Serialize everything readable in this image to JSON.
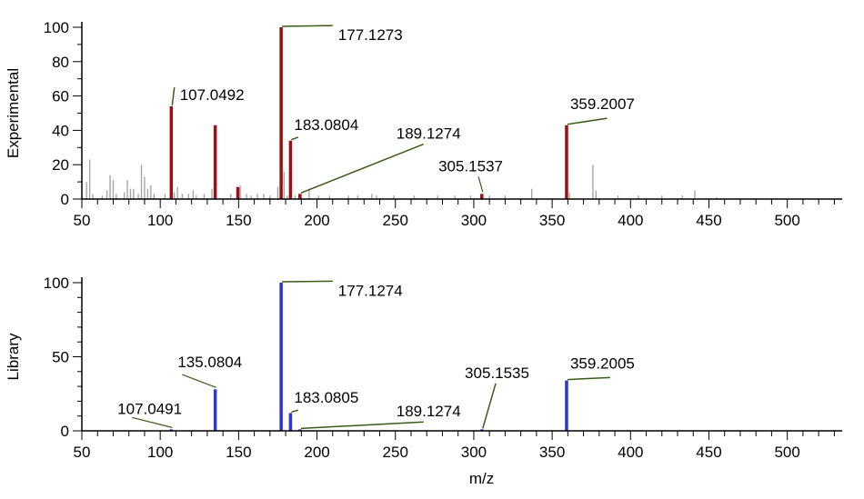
{
  "chart_data": [
    {
      "type": "bar",
      "name": "experimental",
      "ylabel": "Experimental",
      "xlabel": "",
      "xlim": [
        50,
        535
      ],
      "ylim": [
        0,
        100
      ],
      "xticks": [
        50,
        100,
        150,
        200,
        250,
        300,
        350,
        400,
        450,
        500
      ],
      "yticks": [
        0,
        20,
        40,
        60,
        80,
        100
      ],
      "colors": {
        "matched": "#9b1111",
        "unmatched": "#a6a6a6",
        "annotation_line": "#3a5a1a"
      },
      "matched_peaks": [
        {
          "mz": 107.0492,
          "intensity": 54,
          "label": "107.0492"
        },
        {
          "mz": 135.0804,
          "intensity": 43,
          "label": ""
        },
        {
          "mz": 149.5,
          "intensity": 7,
          "label": ""
        },
        {
          "mz": 177.1273,
          "intensity": 100,
          "label": "177.1273"
        },
        {
          "mz": 183.0804,
          "intensity": 34,
          "label": "183.0804"
        },
        {
          "mz": 189.1274,
          "intensity": 3,
          "label": "189.1274"
        },
        {
          "mz": 305.1537,
          "intensity": 3,
          "label": "305.1537"
        },
        {
          "mz": 359.2007,
          "intensity": 43,
          "label": "359.2007"
        }
      ],
      "unmatched_peaks": [
        [
          53,
          10
        ],
        [
          55,
          23
        ],
        [
          57,
          3
        ],
        [
          63,
          2
        ],
        [
          66,
          5
        ],
        [
          68,
          14
        ],
        [
          70,
          11
        ],
        [
          72,
          3
        ],
        [
          77,
          4
        ],
        [
          79,
          11
        ],
        [
          81,
          6
        ],
        [
          83,
          6
        ],
        [
          86,
          3
        ],
        [
          88,
          20
        ],
        [
          90,
          13
        ],
        [
          92,
          6
        ],
        [
          94,
          8
        ],
        [
          96,
          3
        ],
        [
          103,
          3
        ],
        [
          109,
          4
        ],
        [
          111,
          7
        ],
        [
          114,
          3
        ],
        [
          118,
          3
        ],
        [
          121,
          5
        ],
        [
          123,
          2
        ],
        [
          128,
          3
        ],
        [
          133,
          6
        ],
        [
          145,
          3
        ],
        [
          151,
          8
        ],
        [
          155,
          3
        ],
        [
          158,
          2
        ],
        [
          162,
          3
        ],
        [
          166,
          3
        ],
        [
          170,
          2
        ],
        [
          175,
          7
        ],
        [
          179,
          16
        ],
        [
          181,
          2
        ],
        [
          186,
          2
        ],
        [
          195,
          6
        ],
        [
          201,
          2
        ],
        [
          208,
          2
        ],
        [
          220,
          2
        ],
        [
          226,
          2
        ],
        [
          235,
          3
        ],
        [
          238,
          2
        ],
        [
          249,
          2
        ],
        [
          262,
          2
        ],
        [
          277,
          2
        ],
        [
          288,
          2
        ],
        [
          298,
          2
        ],
        [
          310,
          2
        ],
        [
          320,
          2
        ],
        [
          337,
          6
        ],
        [
          361,
          4
        ],
        [
          376,
          20
        ],
        [
          378,
          5
        ],
        [
          392,
          2
        ],
        [
          405,
          2
        ],
        [
          420,
          2
        ],
        [
          433,
          2
        ],
        [
          441,
          5
        ],
        [
          455,
          1
        ]
      ],
      "annotations": [
        {
          "label": "107.0492",
          "mz": 107.0492,
          "text_mz": 109,
          "text_y": 65
        },
        {
          "label": "177.1273",
          "mz": 177.1273,
          "text_mz": 210,
          "text_y": 101
        },
        {
          "label": "183.0804",
          "mz": 183.0804,
          "text_mz": 188,
          "text_y": 36
        },
        {
          "label": "189.1274",
          "mz": 189.1274,
          "text_mz": 268,
          "text_y": 32
        },
        {
          "label": "305.1537",
          "mz": 305.1537,
          "text_mz": 303,
          "text_y": 13
        },
        {
          "label": "359.2007",
          "mz": 359.2007,
          "text_mz": 385,
          "text_y": 47
        }
      ]
    },
    {
      "type": "bar",
      "name": "library",
      "ylabel": "Library",
      "xlabel": "m/z",
      "xlim": [
        50,
        535
      ],
      "ylim": [
        0,
        100
      ],
      "xticks": [
        50,
        100,
        150,
        200,
        250,
        300,
        350,
        400,
        450,
        500
      ],
      "yticks": [
        0,
        50,
        100
      ],
      "colors": {
        "matched": "#2b35d9",
        "annotation_line": "#3a5a1a"
      },
      "matched_peaks": [
        {
          "mz": 107.0491,
          "intensity": 1,
          "label": "107.0491"
        },
        {
          "mz": 135.0804,
          "intensity": 28,
          "label": "135.0804"
        },
        {
          "mz": 177.1274,
          "intensity": 100,
          "label": "177.1274"
        },
        {
          "mz": 183.0805,
          "intensity": 12,
          "label": "183.0805"
        },
        {
          "mz": 189.1274,
          "intensity": 1,
          "label": "189.1274"
        },
        {
          "mz": 305.1535,
          "intensity": 1,
          "label": "305.1535"
        },
        {
          "mz": 359.2005,
          "intensity": 34,
          "label": "359.2005"
        }
      ],
      "unmatched_peaks": [],
      "annotations": [
        {
          "label": "107.0491",
          "mz": 107.0491,
          "text_mz": 82,
          "text_y": 9
        },
        {
          "label": "135.0804",
          "mz": 135.0804,
          "text_mz": 114,
          "text_y": 38
        },
        {
          "label": "177.1274",
          "mz": 177.1274,
          "text_mz": 210,
          "text_y": 101
        },
        {
          "label": "183.0805",
          "mz": 183.0805,
          "text_mz": 188,
          "text_y": 14
        },
        {
          "label": "189.1274",
          "mz": 189.1274,
          "text_mz": 268,
          "text_y": 6
        },
        {
          "label": "305.1535",
          "mz": 305.1535,
          "text_mz": 314,
          "text_y": 32
        },
        {
          "label": "359.2005",
          "mz": 359.2005,
          "text_mz": 387,
          "text_y": 36
        }
      ]
    }
  ]
}
